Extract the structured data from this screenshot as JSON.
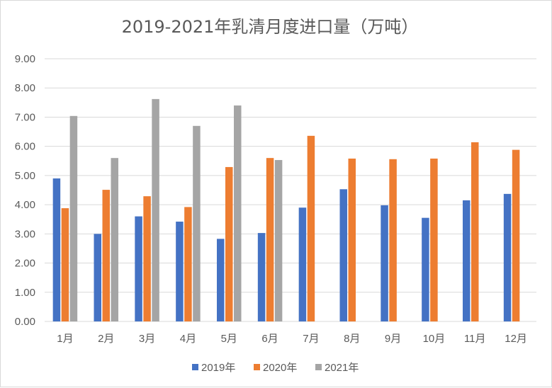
{
  "chart_data": {
    "type": "bar",
    "title": "2019-2021年乳清月度进口量（万吨）",
    "xlabel": "",
    "ylabel": "",
    "categories": [
      "1月",
      "2月",
      "3月",
      "4月",
      "5月",
      "6月",
      "7月",
      "8月",
      "9月",
      "10月",
      "11月",
      "12月"
    ],
    "ylim": [
      0,
      9
    ],
    "yticks": [
      "0.00",
      "1.00",
      "2.00",
      "3.00",
      "4.00",
      "5.00",
      "6.00",
      "7.00",
      "8.00",
      "9.00"
    ],
    "grid": true,
    "legend_position": "bottom",
    "series": [
      {
        "name": "2019年",
        "color": "#4472c4",
        "values": [
          4.9,
          3.0,
          3.6,
          3.42,
          2.83,
          3.03,
          3.9,
          4.53,
          3.98,
          3.55,
          4.15,
          4.37
        ]
      },
      {
        "name": "2020年",
        "color": "#ed7d31",
        "values": [
          3.88,
          4.51,
          4.29,
          3.92,
          5.29,
          5.6,
          6.36,
          5.58,
          5.56,
          5.58,
          6.14,
          5.88
        ]
      },
      {
        "name": "2021年",
        "color": "#a5a5a5",
        "values": [
          7.04,
          5.6,
          7.62,
          6.7,
          7.4,
          5.53,
          null,
          null,
          null,
          null,
          null,
          null
        ]
      }
    ]
  }
}
